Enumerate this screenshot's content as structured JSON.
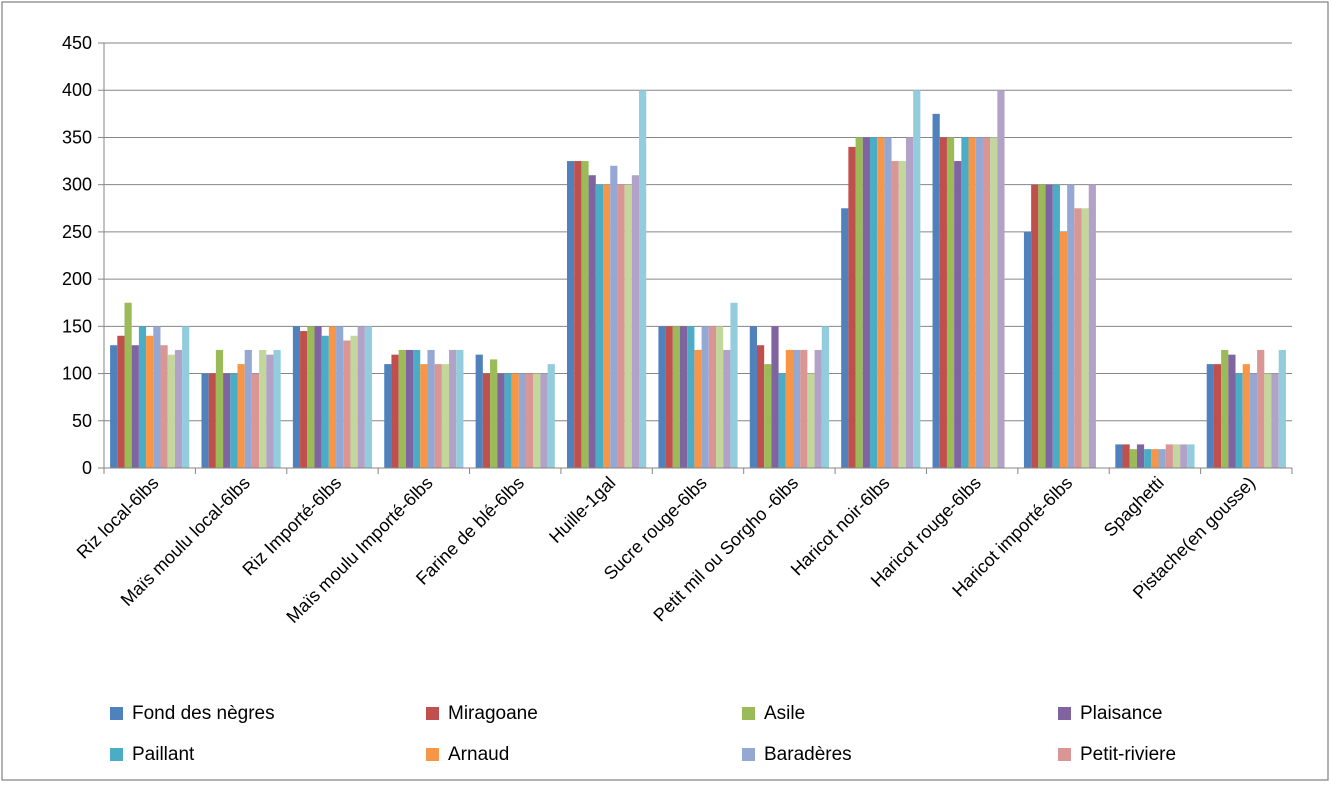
{
  "chart_data": {
    "type": "bar",
    "title": "",
    "xlabel": "",
    "ylabel": "",
    "ylim": [
      0,
      450
    ],
    "yticks": [
      0,
      50,
      100,
      150,
      200,
      250,
      300,
      350,
      400,
      450
    ],
    "grid": true,
    "legend_position": "bottom",
    "categories": [
      "Riz local-6lbs",
      "Maïs moulu local-6lbs",
      "Riz Importé-6lbs",
      "Maïs moulu Importé-6lbs",
      "Farine de blé-6lbs",
      "Huille-1gal",
      "Sucre rouge-6lbs",
      "Petit mil ou Sorgho -6lbs",
      "Haricot noir-6lbs",
      "Haricot rouge-6lbs",
      "Haricot importé-6lbs",
      "Spaghetti",
      "Pistache(en gousse)"
    ],
    "series": [
      {
        "name": "Fond des nègres",
        "color": "#4F81BD",
        "values": [
          130,
          100,
          150,
          110,
          120,
          325,
          150,
          150,
          275,
          375,
          250,
          25,
          110
        ]
      },
      {
        "name": "Miragoane",
        "color": "#C0504D",
        "values": [
          140,
          100,
          145,
          120,
          100,
          325,
          150,
          130,
          340,
          350,
          300,
          25,
          110
        ]
      },
      {
        "name": "Asile",
        "color": "#9BBB59",
        "values": [
          175,
          125,
          150,
          125,
          115,
          325,
          150,
          110,
          350,
          350,
          300,
          20,
          125
        ]
      },
      {
        "name": "Plaisance",
        "color": "#8064A2",
        "values": [
          130,
          100,
          150,
          125,
          100,
          310,
          150,
          150,
          350,
          325,
          300,
          25,
          120
        ]
      },
      {
        "name": "Paillant",
        "color": "#4BACC6",
        "values": [
          150,
          100,
          140,
          125,
          100,
          300,
          150,
          100,
          350,
          350,
          300,
          20,
          100
        ]
      },
      {
        "name": "Arnaud",
        "color": "#F79646",
        "values": [
          140,
          110,
          150,
          110,
          100,
          300,
          125,
          125,
          350,
          350,
          250,
          20,
          110
        ]
      },
      {
        "name": "Baradères",
        "color": "#95A8D4",
        "values": [
          150,
          125,
          150,
          125,
          100,
          320,
          150,
          125,
          350,
          350,
          300,
          20,
          100
        ]
      },
      {
        "name": "Petit-riviere",
        "color": "#D99694",
        "values": [
          130,
          100,
          135,
          110,
          100,
          300,
          150,
          125,
          325,
          350,
          275,
          25,
          125
        ]
      },
      {
        "name": "",
        "color": "#C3D69B",
        "values": [
          120,
          125,
          140,
          110,
          100,
          300,
          150,
          100,
          325,
          350,
          275,
          25,
          100
        ]
      },
      {
        "name": "",
        "color": "#B3A2C7",
        "values": [
          125,
          120,
          150,
          125,
          100,
          310,
          125,
          125,
          350,
          400,
          300,
          25,
          100
        ]
      },
      {
        "name": "",
        "color": "#93CDDD",
        "values": [
          150,
          125,
          150,
          125,
          110,
          400,
          175,
          150,
          400,
          null,
          null,
          25,
          125
        ]
      }
    ]
  }
}
